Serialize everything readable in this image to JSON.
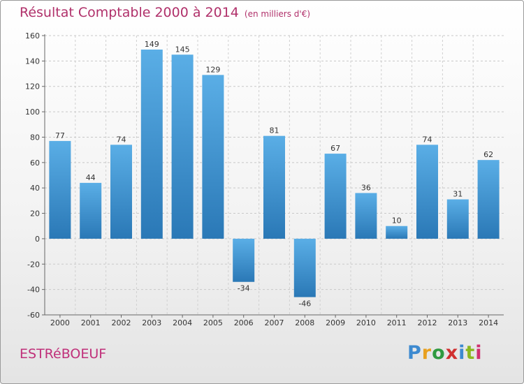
{
  "chart_data": {
    "type": "bar",
    "title": "Résultat Comptable 2000 à 2014",
    "subtitle": "(en milliers d'€)",
    "categories": [
      "2000",
      "2001",
      "2002",
      "2003",
      "2004",
      "2005",
      "2006",
      "2007",
      "2008",
      "2009",
      "2010",
      "2011",
      "2012",
      "2013",
      "2014"
    ],
    "values": [
      77,
      44,
      74,
      149,
      145,
      129,
      -34,
      81,
      -46,
      67,
      36,
      10,
      74,
      31,
      62
    ],
    "ylim": [
      -60,
      160
    ],
    "yticks": [
      -60,
      -40,
      -20,
      0,
      20,
      40,
      60,
      80,
      100,
      120,
      140,
      160
    ],
    "grid": true,
    "bar_color_light": "#5aaee6",
    "bar_color_dark": "#2a78b6"
  },
  "commune": "ESTRéBOEUF",
  "brand": {
    "letters": [
      "P",
      "r",
      "o",
      "x",
      "i",
      "t",
      "i"
    ],
    "colors": [
      "#3d8ad0",
      "#e8a020",
      "#2f9a40",
      "#d03030",
      "#3d8ad0",
      "#8ab820",
      "#d03070"
    ]
  }
}
